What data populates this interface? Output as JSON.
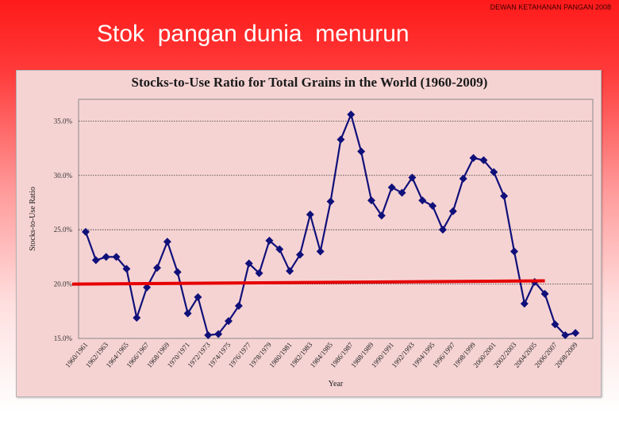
{
  "header": {
    "note": "DEWAN KETAHANAN PANGAN 2008",
    "title": "Stok  pangan dunia  menurun"
  },
  "colors": {
    "series": "#10107a",
    "reference_line": "#e60000",
    "plot_bg": "#f6d3d3",
    "gridline": "#333333"
  },
  "chart_data": {
    "type": "line",
    "title": "Stocks-to-Use Ratio for Total Grains in the World (1960-2009)",
    "xlabel": "Year",
    "ylabel": "Stocks-to-Use Ratio",
    "ylim": [
      15,
      37
    ],
    "yticks": [
      "15.0%",
      "20.0%",
      "25.0%",
      "30.0%",
      "35.0%"
    ],
    "grid": "horizontal dotted",
    "legend": "none",
    "x": [
      "1960/1961",
      "1961/1962",
      "1962/1963",
      "1963/1964",
      "1964/1965",
      "1965/1966",
      "1966/1967",
      "1967/1968",
      "1968/1969",
      "1969/1970",
      "1970/1971",
      "1971/1972",
      "1972/1973",
      "1973/1974",
      "1974/1975",
      "1975/1976",
      "1976/1977",
      "1977/1978",
      "1978/1979",
      "1979/1980",
      "1980/1981",
      "1981/1982",
      "1982/1983",
      "1983/1984",
      "1984/1985",
      "1985/1986",
      "1986/1987",
      "1987/1988",
      "1988/1989",
      "1989/1990",
      "1990/1991",
      "1991/1992",
      "1992/1993",
      "1993/1994",
      "1994/1995",
      "1995/1996",
      "1996/1997",
      "1997/1998",
      "1998/1999",
      "1999/2000",
      "2000/2001",
      "2001/2002",
      "2002/2003",
      "2003/2004",
      "2004/2005",
      "2005/2006",
      "2006/2007",
      "2007/2008",
      "2008/2009",
      "2009/2010"
    ],
    "tick_labels": [
      "1960/1961",
      "1962/1963",
      "1964/1965",
      "1966/1967",
      "1968/1969",
      "1970/1971",
      "1972/1973",
      "1974/1975",
      "1976/1977",
      "1978/1979",
      "1980/1981",
      "1982/1983",
      "1984/1985",
      "1986/1987",
      "1988/1989",
      "1990/1991",
      "1992/1993",
      "1994/1995",
      "1996/1997",
      "1998/1999",
      "2000/2001",
      "2002/2003",
      "2004/2005",
      "2006/2007",
      "2008/2009"
    ],
    "series": [
      {
        "values": [
          24.8,
          22.2,
          22.5,
          22.5,
          21.4,
          16.9,
          19.7,
          21.5,
          23.9,
          21.1,
          17.3,
          18.8,
          15.3,
          15.4,
          16.6,
          18.0,
          21.9,
          21.0,
          24.0,
          23.2,
          21.2,
          22.7,
          26.4,
          23.0,
          27.6,
          33.3,
          35.6,
          32.2,
          27.7,
          26.3,
          28.9,
          28.4,
          29.8,
          27.7,
          27.2,
          25.0,
          26.7,
          29.7,
          31.6,
          31.4,
          30.3,
          28.1,
          23.0,
          18.2,
          20.2,
          19.1,
          16.3,
          15.3,
          15.5,
          null
        ]
      }
    ],
    "reference_line": {
      "from_y": 20.0,
      "to_y": 20.3
    }
  }
}
